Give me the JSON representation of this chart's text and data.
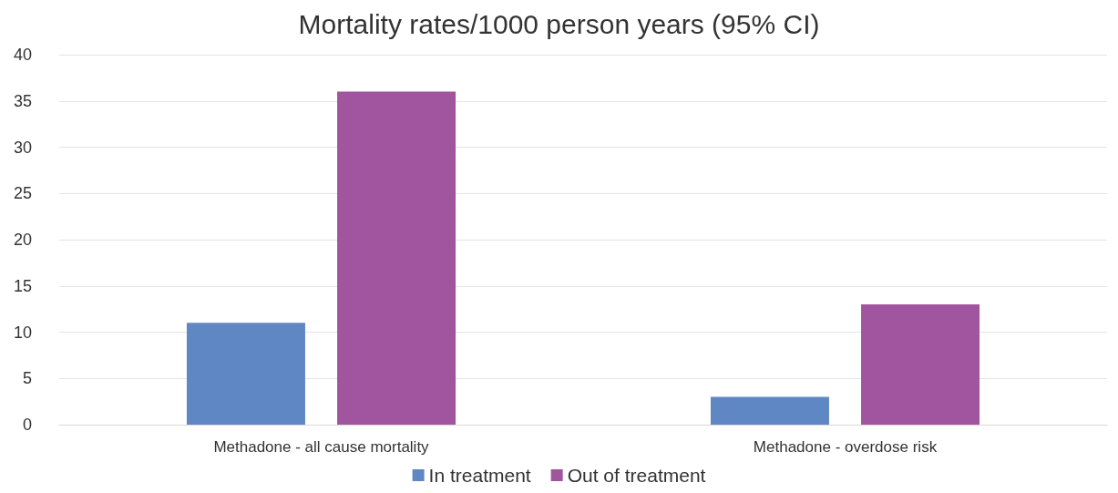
{
  "chart_data": {
    "type": "bar",
    "title": "Mortality rates/1000 person years (95% CI)",
    "categories": [
      "Methadone - all cause mortality",
      "Methadone - overdose risk"
    ],
    "series": [
      {
        "name": "In treatment",
        "color": "#5f87c4",
        "values": [
          11,
          3
        ]
      },
      {
        "name": "Out of treatment",
        "color": "#a0559e",
        "values": [
          36,
          13
        ]
      }
    ],
    "ylim": [
      0,
      40
    ],
    "yticks": [
      0,
      5,
      10,
      15,
      20,
      25,
      30,
      35,
      40
    ],
    "grid": "y",
    "legend": "bottom"
  }
}
